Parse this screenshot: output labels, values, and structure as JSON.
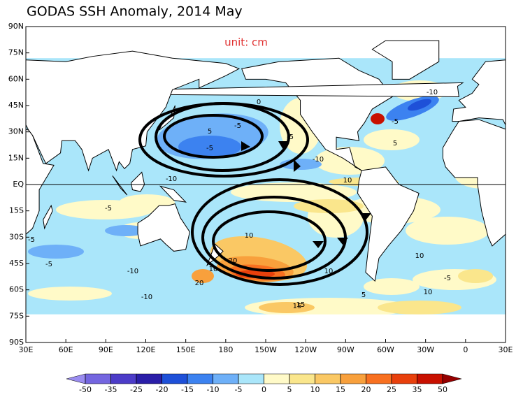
{
  "title": "GODAS SSH Anomaly, 2014 May",
  "unit": "unit: cm",
  "lat_labels": [
    "90N",
    "75N",
    "60N",
    "45N",
    "30N",
    "15N",
    "EQ",
    "15S",
    "30S",
    "45S",
    "60S",
    "75S",
    "90S"
  ],
  "lon_labels": [
    "30E",
    "60E",
    "90E",
    "120E",
    "150E",
    "180",
    "150W",
    "120W",
    "90W",
    "60W",
    "30W",
    "0",
    "30E"
  ],
  "contour_labels": [
    -5,
    -5,
    -10,
    5,
    -10,
    -5,
    -10,
    -5,
    10,
    5,
    -10,
    -5,
    10,
    20,
    15,
    10,
    20,
    10,
    15,
    -5,
    10,
    -5,
    5,
    10,
    -10,
    -5,
    0
  ],
  "colorbar": {
    "ticks": [
      -50,
      -35,
      -25,
      -20,
      -15,
      -10,
      -5,
      0,
      5,
      10,
      15,
      20,
      25,
      35,
      50
    ],
    "colors": [
      "#9a8cf0",
      "#7466e0",
      "#4c3cc8",
      "#2a1ea8",
      "#1e50d8",
      "#3c82f0",
      "#6eb0f8",
      "#aae6fa",
      "#fffac8",
      "#fae68c",
      "#fac864",
      "#f8a03c",
      "#f87020",
      "#e8400c",
      "#c81000",
      "#960000"
    ]
  }
}
